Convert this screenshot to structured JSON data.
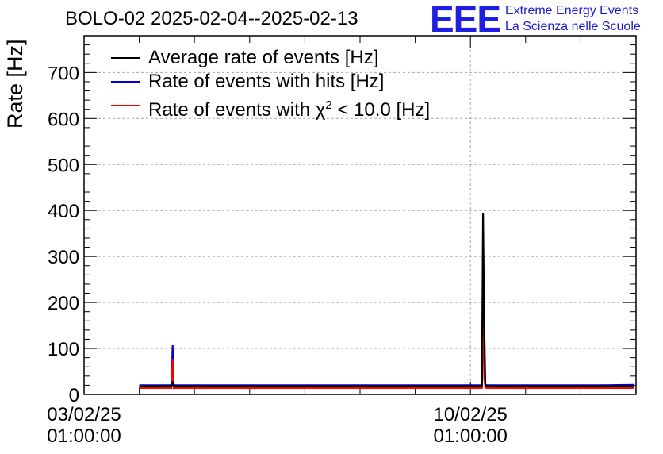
{
  "chart_data": {
    "type": "line",
    "title": "BOLO-02 2025-02-04--2025-02-13",
    "ylabel": "Rate [Hz]",
    "xlabel": "",
    "ylim": [
      0,
      780
    ],
    "xlim": [
      "2025-02-03T01:00:00",
      "2025-02-13T01:00:00"
    ],
    "y_ticks": [
      0,
      100,
      200,
      300,
      400,
      500,
      600,
      700
    ],
    "x_ticks": [
      {
        "at": "2025-02-03T01:00:00",
        "line1": "03/02/25",
        "line2": "01:00:00"
      },
      {
        "at": "2025-02-10T01:00:00",
        "line1": "10/02/25",
        "line2": "01:00:00"
      }
    ],
    "grid": true,
    "legend_position": "top-left",
    "series": [
      {
        "name": "Average rate of events [Hz]",
        "color": "#000000",
        "x": [
          "2025-02-04T01:00:00",
          "2025-02-04T15:00:00",
          "2025-02-04T15:30:00",
          "2025-02-04T16:00:00",
          "2025-02-07T00:00:00",
          "2025-02-10T06:00:00",
          "2025-02-10T06:30:00",
          "2025-02-10T07:00:00",
          "2025-02-10T07:30:00",
          "2025-02-10T08:00:00",
          "2025-02-12T10:00:00",
          "2025-02-13T00:00:00"
        ],
        "y": [
          18,
          18,
          28,
          18,
          18,
          18,
          395,
          155,
          22,
          18,
          18,
          18
        ]
      },
      {
        "name": "Rate of events with hits [Hz]",
        "color": "#0000cc",
        "x": [
          "2025-02-04T01:00:00",
          "2025-02-04T15:00:00",
          "2025-02-04T15:30:00",
          "2025-02-04T16:00:00",
          "2025-02-07T00:00:00",
          "2025-02-10T06:00:00",
          "2025-02-10T06:30:00",
          "2025-02-10T07:00:00",
          "2025-02-10T07:30:00",
          "2025-02-10T08:00:00",
          "2025-02-12T10:00:00",
          "2025-02-13T00:00:00"
        ],
        "y": [
          20,
          20,
          107,
          20,
          20,
          20,
          335,
          40,
          21,
          20,
          20,
          21
        ]
      },
      {
        "name": "Rate of events with χ² < 10.0 [Hz]",
        "name_parts": [
          "Rate of events with ",
          "χ",
          "2",
          " < 10.0 [Hz]"
        ],
        "color": "#ff0000",
        "x": [
          "2025-02-04T01:00:00",
          "2025-02-04T15:00:00",
          "2025-02-04T15:30:00",
          "2025-02-04T16:00:00",
          "2025-02-07T00:00:00",
          "2025-02-10T06:00:00",
          "2025-02-10T06:30:00",
          "2025-02-10T07:00:00",
          "2025-02-10T07:30:00",
          "2025-02-10T08:00:00",
          "2025-02-12T10:00:00",
          "2025-02-13T00:00:00"
        ],
        "y": [
          14,
          14,
          78,
          14,
          14,
          14,
          272,
          35,
          15,
          14,
          14,
          14
        ]
      }
    ]
  },
  "logo": {
    "letters": "EEE",
    "line1": "Extreme Energy Events",
    "line2": "La Scienza nelle Scuole",
    "color": "#1f1fe0"
  }
}
